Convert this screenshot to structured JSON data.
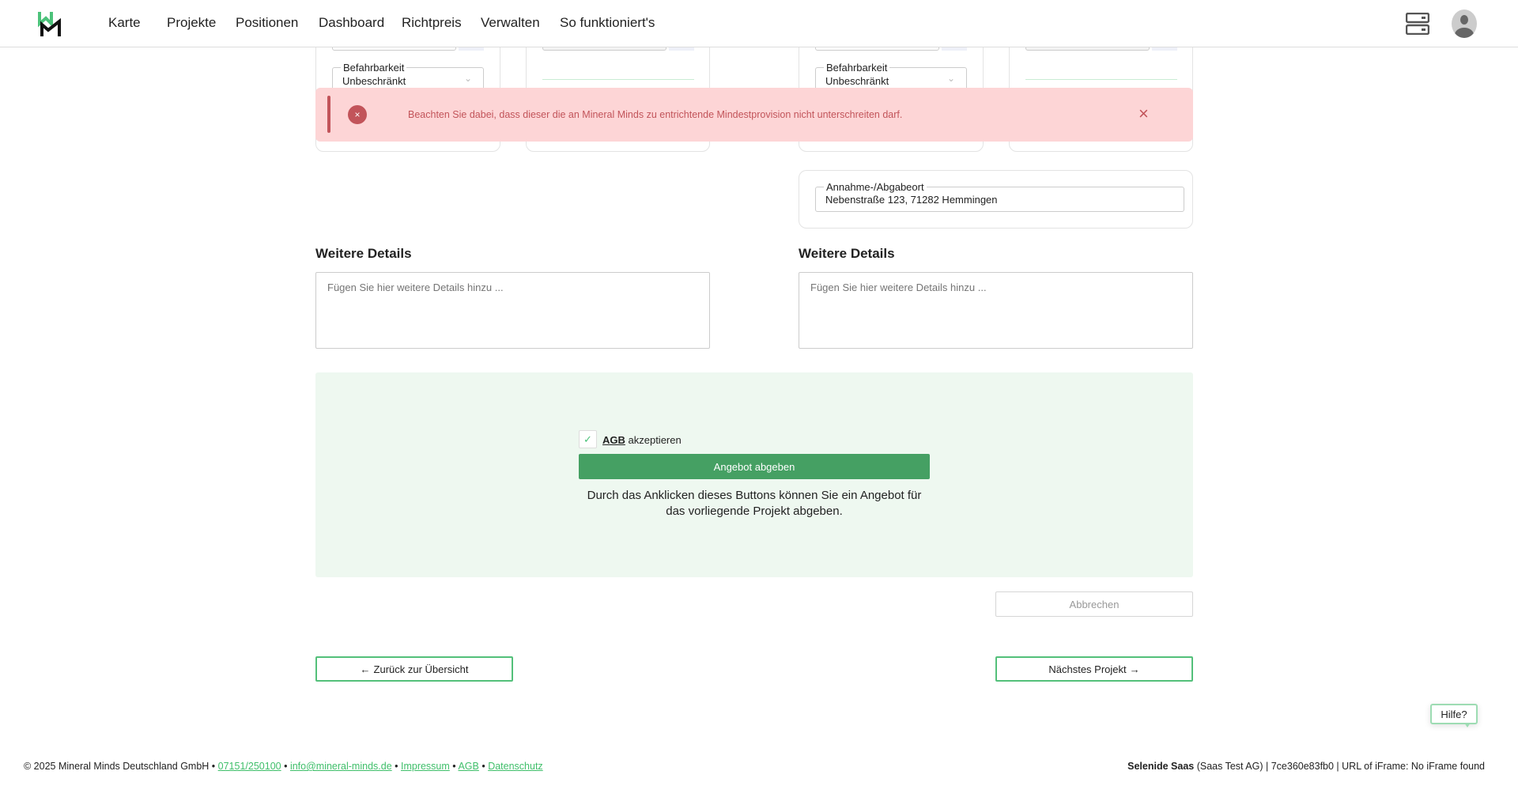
{
  "header": {
    "logo_alt": "MM",
    "nav": [
      "Karte",
      "Projekte",
      "Positionen",
      "Dashboard",
      "Richtpreis",
      "Verwalten",
      "So funktioniert's"
    ]
  },
  "cards": {
    "left_select_label": "Befahrbarkeit",
    "left_select_value": "Unbeschränkt",
    "right_select_label": "Befahrbarkeit",
    "right_select_value": "Unbeschränkt"
  },
  "alert": {
    "message": "Beachten Sie dabei, dass dieser die an Mineral Minds zu entrichtende Mindestprovision nicht unterschreiten darf.",
    "close": "×"
  },
  "location": {
    "label": "Annahme-/Abgabeort",
    "value": "Nebenstraße 123, 71282 Hemmingen"
  },
  "details": {
    "left_heading": "Weitere Details",
    "right_heading": "Weitere Details",
    "placeholder": "Fügen Sie hier weitere Details hinzu ..."
  },
  "offer": {
    "agb_link": "AGB",
    "agb_text": " akzeptieren",
    "agb_checked": true,
    "submit": "Angebot abgeben",
    "note": "Durch das Anklicken dieses Buttons können Sie ein Angebot für das vorliegende Projekt abgeben.",
    "cancel": "Abbrechen"
  },
  "navigation": {
    "back": "Zurück zur Übersicht",
    "next": "Nächstes Projekt"
  },
  "help": "Hilfe?",
  "footer": {
    "copyright": "© 2025 Mineral Minds Deutschland GmbH",
    "phone": "07151/250100",
    "email": "info@mineral-minds.de",
    "impressum": "Impressum",
    "agb": "AGB",
    "datenschutz": "Datenschutz",
    "company": "Selenide Saas",
    "info": " (Saas Test AG) | 7ce360e83fb0 | URL of iFrame: No iFrame found"
  },
  "colors": {
    "brand_green": "#45a063",
    "accent_green": "#53c07a",
    "alert_bg": "#fdd5d6",
    "alert_text": "#c2545a",
    "panel_bg": "#eef8f0"
  }
}
